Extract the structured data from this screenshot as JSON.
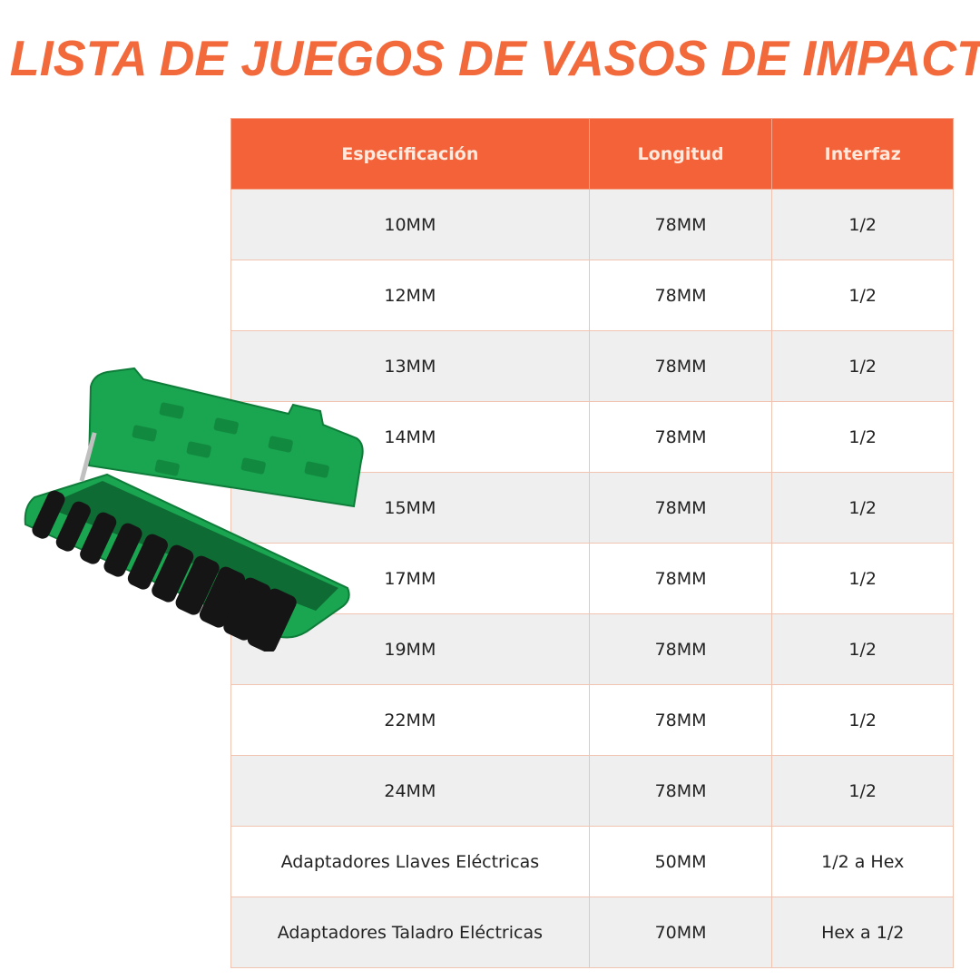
{
  "title": "LISTA DE JUEGOS DE VASOS DE IMPACTO",
  "table": {
    "headers": [
      "Especificación",
      "Longitud",
      "Interfaz"
    ],
    "rows": [
      [
        "10MM",
        "78MM",
        "1/2"
      ],
      [
        "12MM",
        "78MM",
        "1/2"
      ],
      [
        "13MM",
        "78MM",
        "1/2"
      ],
      [
        "14MM",
        "78MM",
        "1/2"
      ],
      [
        "15MM",
        "78MM",
        "1/2"
      ],
      [
        "17MM",
        "78MM",
        "1/2"
      ],
      [
        "19MM",
        "78MM",
        "1/2"
      ],
      [
        "22MM",
        "78MM",
        "1/2"
      ],
      [
        "24MM",
        "78MM",
        "1/2"
      ],
      [
        "Adaptadores Llaves Eléctricas",
        "50MM",
        "1/2 a Hex"
      ],
      [
        "Adaptadores Taladro Eléctricas",
        "70MM",
        "Hex a 1/2"
      ]
    ]
  },
  "colors": {
    "accent": "#f4623a",
    "case": "#1aa550"
  },
  "image": "green-socket-case-product-photo"
}
